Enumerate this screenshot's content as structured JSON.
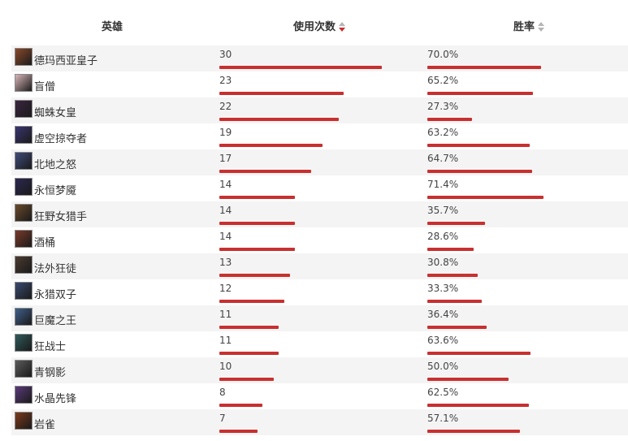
{
  "header": {
    "hero_label": "英雄",
    "uses_label": "使用次数",
    "rate_label": "胜率"
  },
  "colors": {
    "bar": "#c8302f",
    "sort_active": "#c8302f",
    "sort_inactive": "#b5b5b5"
  },
  "rows": [
    {
      "name": "德玛西亚皇子",
      "uses": "30",
      "rate": "70.0%",
      "avatar_color": "#8a4a2a"
    },
    {
      "name": "盲僧",
      "uses": "23",
      "rate": "65.2%",
      "avatar_color": "#d8b6b8"
    },
    {
      "name": "蜘蛛女皇",
      "uses": "22",
      "rate": "27.3%",
      "avatar_color": "#3a2540"
    },
    {
      "name": "虚空掠夺者",
      "uses": "19",
      "rate": "63.2%",
      "avatar_color": "#3a3570"
    },
    {
      "name": "北地之怒",
      "uses": "17",
      "rate": "64.7%",
      "avatar_color": "#3f4b7a"
    },
    {
      "name": "永恒梦魇",
      "uses": "14",
      "rate": "71.4%",
      "avatar_color": "#2b2850"
    },
    {
      "name": "狂野女猎手",
      "uses": "14",
      "rate": "35.7%",
      "avatar_color": "#6a4a2a"
    },
    {
      "name": "酒桶",
      "uses": "14",
      "rate": "28.6%",
      "avatar_color": "#7a3a2a"
    },
    {
      "name": "法外狂徒",
      "uses": "13",
      "rate": "30.8%",
      "avatar_color": "#4a3a30"
    },
    {
      "name": "永猎双子",
      "uses": "12",
      "rate": "33.3%",
      "avatar_color": "#3a4a70"
    },
    {
      "name": "巨魔之王",
      "uses": "11",
      "rate": "36.4%",
      "avatar_color": "#3f5f8a"
    },
    {
      "name": "狂战士",
      "uses": "11",
      "rate": "63.6%",
      "avatar_color": "#2f5a5a"
    },
    {
      "name": "青钢影",
      "uses": "10",
      "rate": "50.0%",
      "avatar_color": "#5a5a5a"
    },
    {
      "name": "水晶先锋",
      "uses": "8",
      "rate": "62.5%",
      "avatar_color": "#5a3a7a"
    },
    {
      "name": "岩雀",
      "uses": "7",
      "rate": "57.1%",
      "avatar_color": "#7a3a1a"
    }
  ]
}
